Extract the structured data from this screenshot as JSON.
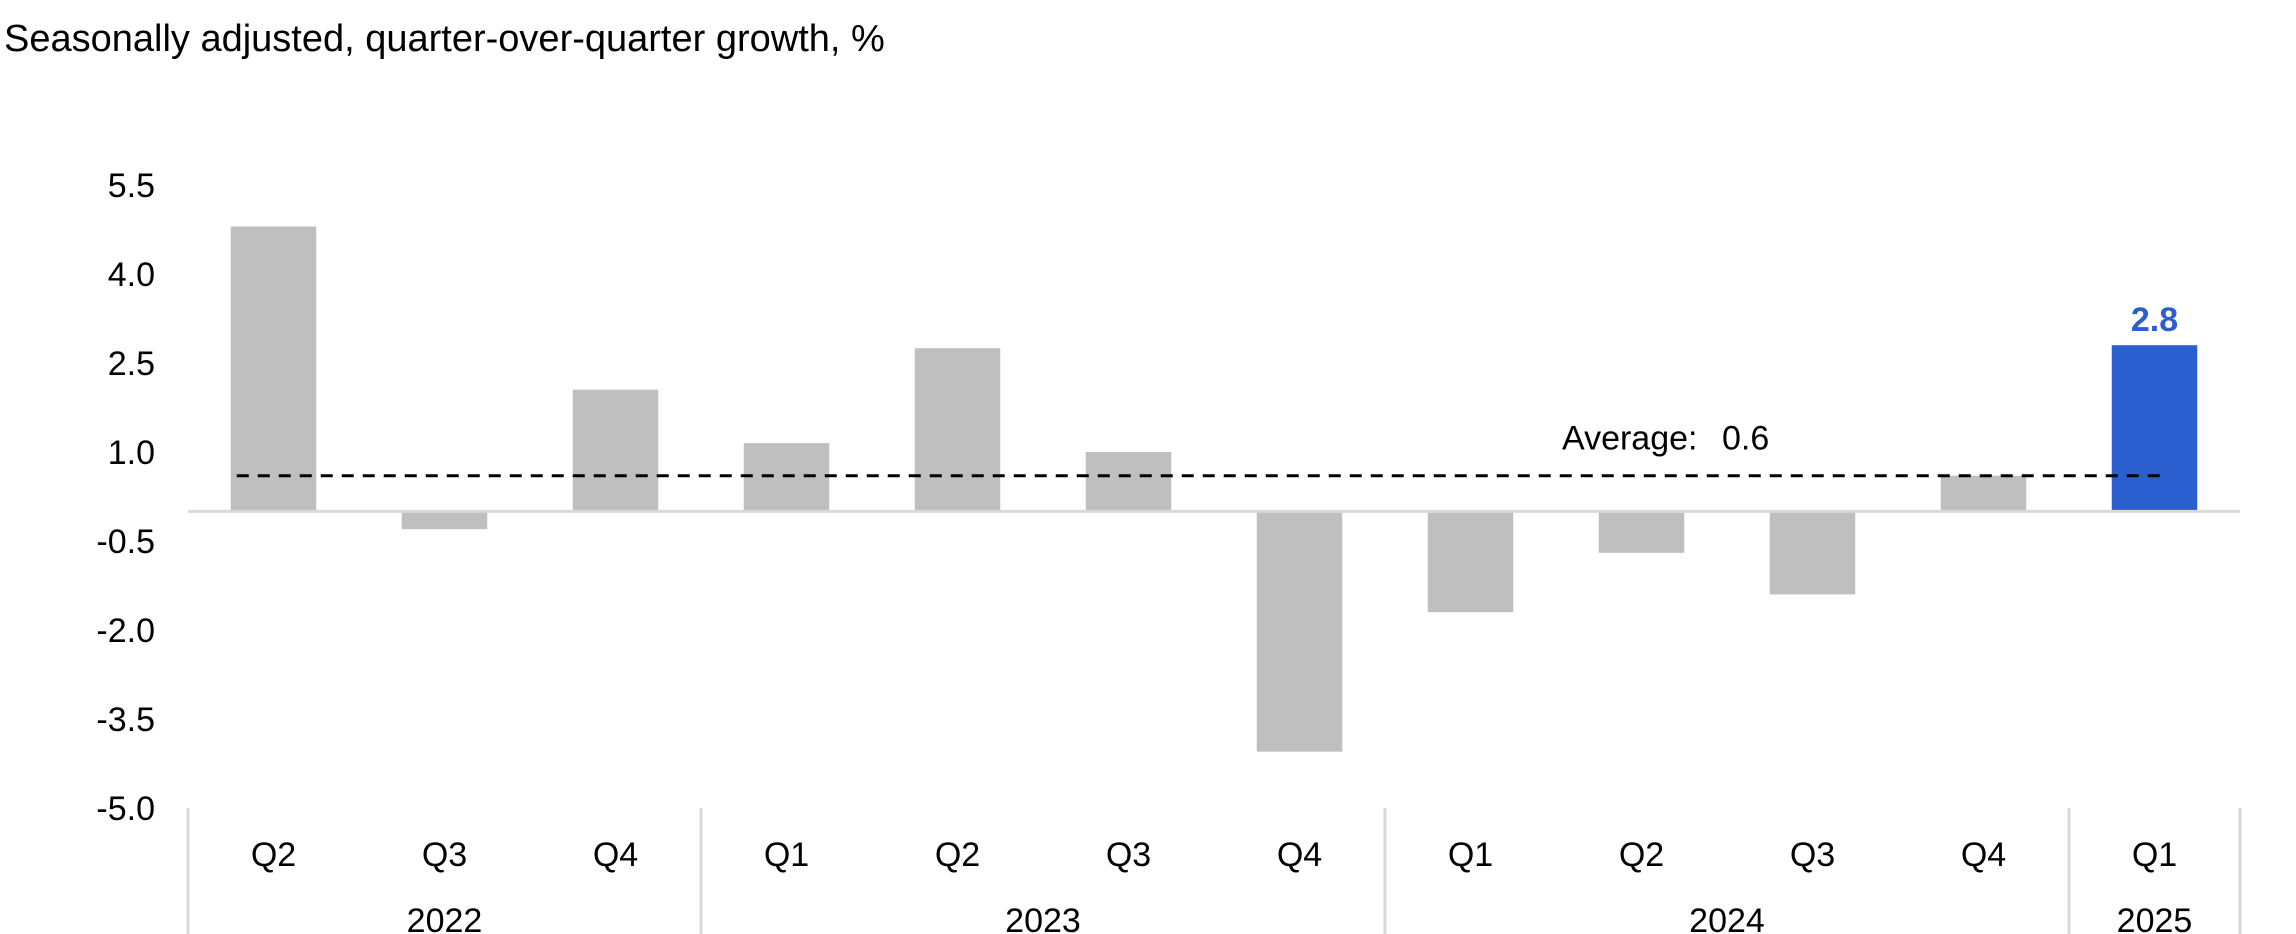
{
  "chart_data": {
    "type": "bar",
    "subtitle": "Seasonally adjusted, quarter-over-quarter growth, %",
    "categories": [
      "Q2",
      "Q3",
      "Q4",
      "Q1",
      "Q2",
      "Q3",
      "Q4",
      "Q1",
      "Q2",
      "Q3",
      "Q4",
      "Q1"
    ],
    "groups": [
      {
        "label": "2022",
        "count": 3
      },
      {
        "label": "2023",
        "count": 4
      },
      {
        "label": "2024",
        "count": 4
      },
      {
        "label": "2025",
        "count": 1
      }
    ],
    "series": [
      {
        "values": [
          4.8,
          -0.3,
          2.05,
          1.15,
          2.75,
          1.0,
          -4.05,
          -1.7,
          -0.7,
          -1.4,
          0.6,
          2.8
        ]
      }
    ],
    "highlight_index": 11,
    "data_labels": [
      {
        "index": 11,
        "text": "2.8"
      }
    ],
    "average": {
      "value": 0.6,
      "label": "Average:",
      "value_label": "0.6"
    },
    "yticks": [
      "5.5",
      "4.0",
      "2.5",
      "1.0",
      "-0.5",
      "-2.0",
      "-3.5",
      "-5.0"
    ],
    "ytick_values": [
      5.5,
      4.0,
      2.5,
      1.0,
      -0.5,
      -2.0,
      -3.5,
      -5.0
    ],
    "ylim": [
      -5.0,
      5.5
    ],
    "grid": false,
    "legend": "none",
    "colors": {
      "bar": "#bfbfbf",
      "highlight": "#2b5fd0",
      "average_line": "#000000",
      "axis": "#d9d9d9"
    }
  }
}
